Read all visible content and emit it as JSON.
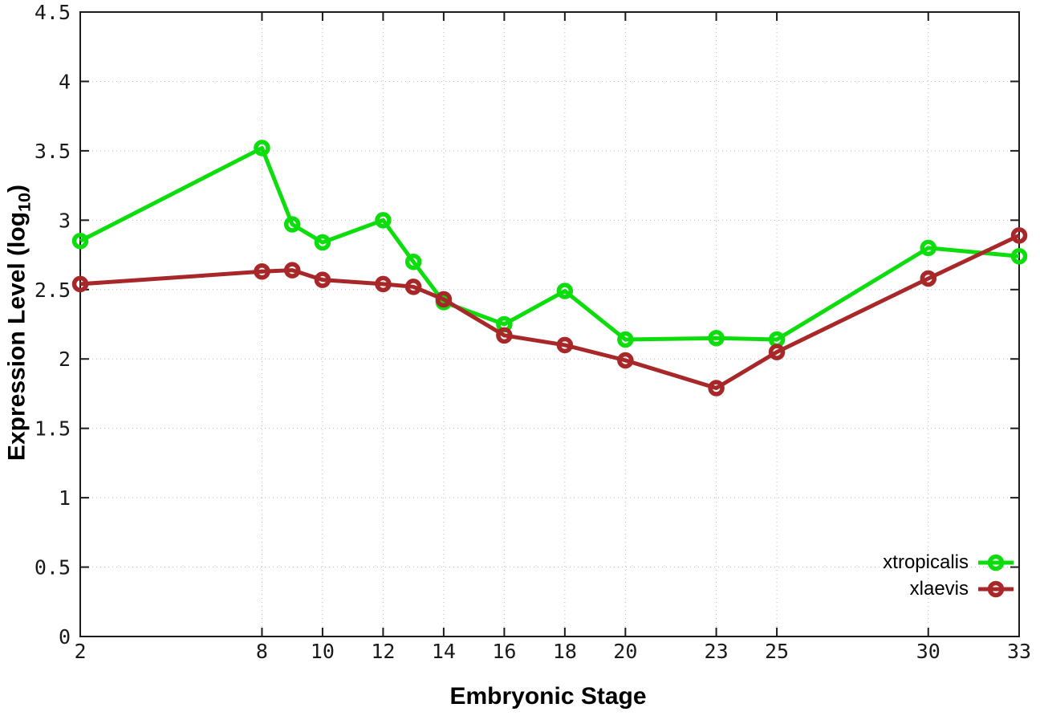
{
  "chart_data": {
    "type": "line",
    "x": [
      2,
      8,
      9,
      10,
      12,
      13,
      14,
      16,
      18,
      20,
      23,
      25,
      30,
      33
    ],
    "series": [
      {
        "name": "xtropicalis",
        "color": "#0ddd0d",
        "values": [
          2.85,
          3.52,
          2.97,
          2.84,
          3.0,
          2.7,
          2.41,
          2.25,
          2.49,
          2.14,
          2.15,
          2.14,
          2.8,
          2.74
        ]
      },
      {
        "name": "xlaevis",
        "color": "#a8282a",
        "values": [
          2.54,
          2.63,
          2.64,
          2.57,
          2.54,
          2.52,
          2.43,
          2.17,
          2.1,
          1.99,
          1.79,
          2.05,
          2.58,
          2.89
        ]
      }
    ],
    "title": "",
    "xlabel": "Embryonic Stage",
    "ylabel": "Expression Level (log10)",
    "ylabel_parts": {
      "prefix": "Expression Level (log",
      "sub": "10",
      "suffix": ")"
    },
    "xlim": [
      2,
      33
    ],
    "ylim": [
      0,
      4.5
    ],
    "xticks": [
      2,
      8,
      10,
      12,
      14,
      16,
      18,
      20,
      23,
      25,
      30,
      33
    ],
    "xtick_labels": [
      "2",
      "8",
      "10",
      "12",
      "14",
      "16",
      "18",
      "20",
      "23",
      "25",
      "30",
      "33"
    ],
    "yticks": [
      0,
      0.5,
      1,
      1.5,
      2,
      2.5,
      3,
      3.5,
      4,
      4.5
    ],
    "ytick_labels": [
      "0",
      "0.5",
      "1",
      "1.5",
      "2",
      "2.5",
      "3",
      "3.5",
      "4",
      "4.5"
    ],
    "grid": true,
    "grid_style": "dotted",
    "legend_position": "bottom-right-inside",
    "marker": "open-circle",
    "colors": {
      "grid": "#b9b9b9",
      "border": "#1c1c1c",
      "text": "#000000"
    }
  }
}
